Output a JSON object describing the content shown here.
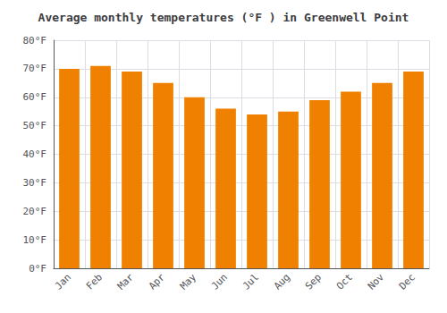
{
  "chart_data": {
    "type": "bar",
    "title": "Average monthly temperatures (°F ) in Greenwell Point",
    "categories": [
      "Jan",
      "Feb",
      "Mar",
      "Apr",
      "May",
      "Jun",
      "Jul",
      "Aug",
      "Sep",
      "Oct",
      "Nov",
      "Dec"
    ],
    "values": [
      70,
      71,
      69,
      65,
      60,
      56,
      54,
      55,
      59,
      62,
      65,
      69
    ],
    "color": "#F08000",
    "ylim": [
      0,
      80
    ],
    "yticks": [
      {
        "value": 0,
        "label": "0°F"
      },
      {
        "value": 10,
        "label": "10°F"
      },
      {
        "value": 20,
        "label": "20°F"
      },
      {
        "value": 30,
        "label": "30°F"
      },
      {
        "value": 40,
        "label": "40°F"
      },
      {
        "value": 50,
        "label": "50°F"
      },
      {
        "value": 60,
        "label": "60°F"
      },
      {
        "value": 70,
        "label": "70°F"
      },
      {
        "value": 80,
        "label": "80°F"
      }
    ],
    "grid": true
  }
}
